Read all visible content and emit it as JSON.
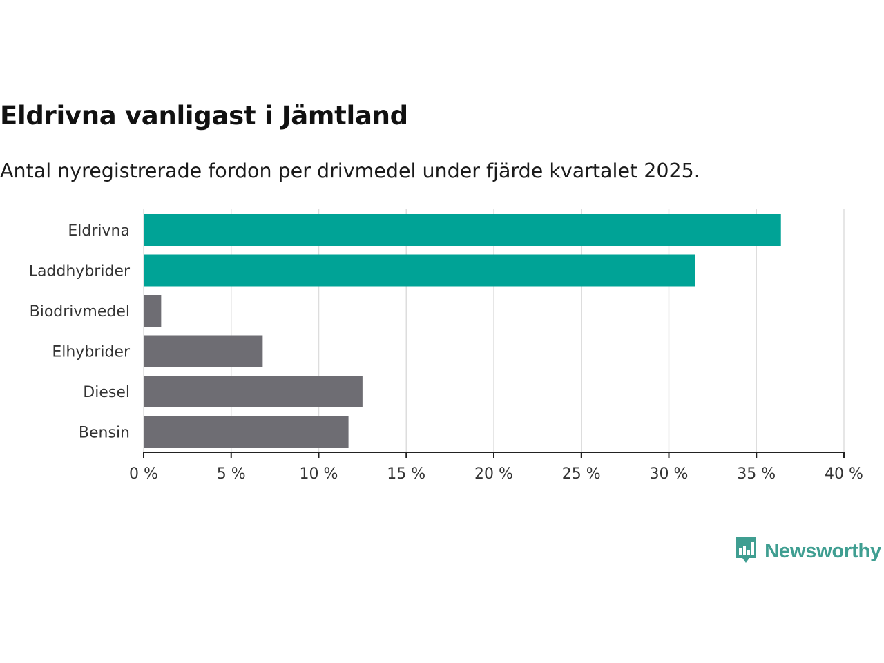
{
  "colors": {
    "accent": "#00a396",
    "neutral": "#6e6d73",
    "grid": "#dddddd",
    "axis": "#222222",
    "brand": "#3f9e91"
  },
  "brand": {
    "name": "Newsworthy",
    "icon": "bar-chart-speech-bubble-icon"
  },
  "chart_data": {
    "type": "bar",
    "orientation": "horizontal",
    "title": "Eldrivna vanligast i Jämtland",
    "subtitle": "Antal nyregistrerade fordon per drivmedel under fjärde kvartalet 2025.",
    "xlabel": "",
    "ylabel": "",
    "xlim": [
      0,
      40
    ],
    "grid": true,
    "value_unit": "%",
    "categories": [
      "Eldrivna",
      "Laddhybrider",
      "Biodrivmedel",
      "Elhybrider",
      "Diesel",
      "Bensin"
    ],
    "values": [
      36.4,
      31.5,
      1.0,
      6.8,
      12.5,
      11.7
    ],
    "highlight": [
      true,
      true,
      false,
      false,
      false,
      false
    ],
    "ticks": [
      0,
      5,
      10,
      15,
      20,
      25,
      30,
      35,
      40
    ],
    "tick_labels": [
      "0 %",
      "5 %",
      "10 %",
      "15 %",
      "20 %",
      "25 %",
      "30 %",
      "35 %",
      "40 %"
    ]
  }
}
